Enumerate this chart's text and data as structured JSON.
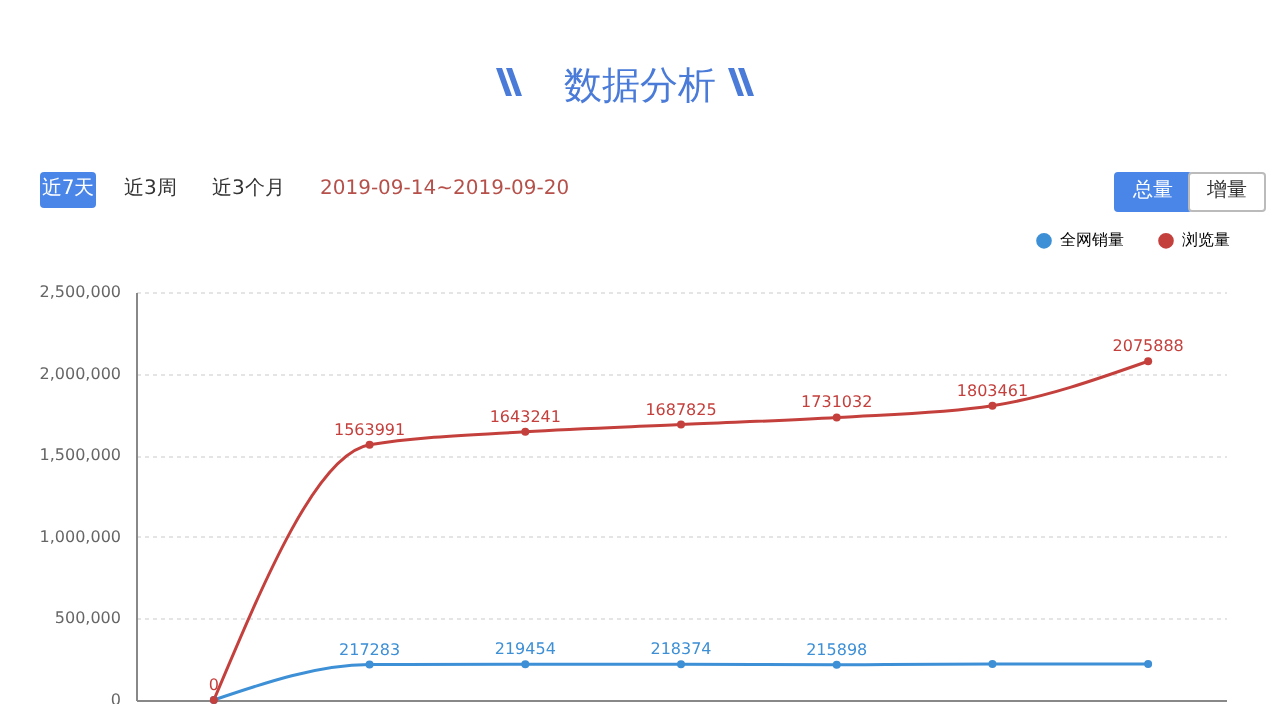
{
  "chart_data": {
    "type": "line",
    "title": "数据分析",
    "annotations": [
      "近7天",
      "近3周",
      "近3个月",
      "2019-09-14~2019-09-20",
      "总量",
      "增量"
    ],
    "categories": [
      null,
      null,
      null,
      null,
      null,
      null,
      null
    ],
    "series": [
      {
        "name": "全网销量",
        "color": "#3d8fd6",
        "values": [
          0,
          217283,
          219454,
          218374,
          215898,
          220000,
          220000
        ],
        "value_labels": [
          null,
          "217283",
          "219454",
          "218374",
          "215898",
          null,
          null
        ]
      },
      {
        "name": "浏览量",
        "color": "#c4403d",
        "values": [
          0,
          1563991,
          1643241,
          1687825,
          1731032,
          1803461,
          2075888
        ],
        "value_labels": [
          "0",
          "1563991",
          "1643241",
          "1687825",
          "1731032",
          "1803461",
          "2075888"
        ]
      }
    ],
    "ylim": [
      0,
      2500000
    ],
    "yticks": [
      0,
      {
        "value": 500000,
        "label": "500,000"
      },
      {
        "value": 1000000,
        "label": "1,000,000"
      },
      {
        "value": 1500000,
        "label": "1,500,000"
      },
      {
        "value": 2000000,
        "label": "2,000,000"
      },
      {
        "value": 2500000,
        "label": "2,500,000"
      }
    ],
    "grid": "y",
    "legend": "top right",
    "marker": "circle",
    "line_style": "solid",
    "tick_labels": "y"
  }
}
